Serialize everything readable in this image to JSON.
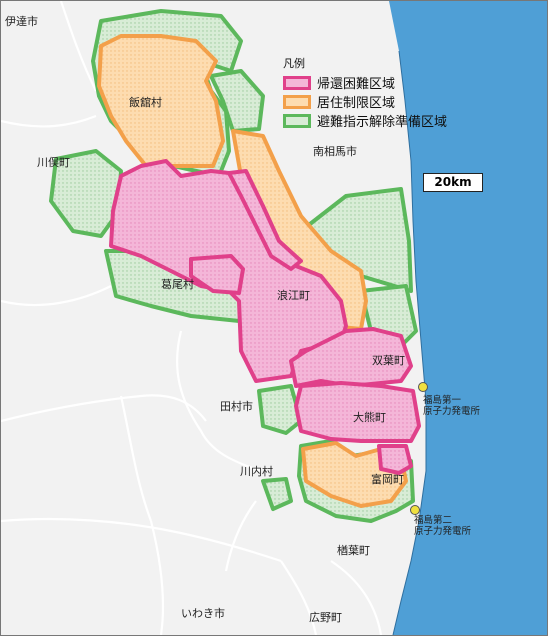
{
  "legend": {
    "title": "凡例",
    "items": [
      {
        "label": "帰還困難区域",
        "fill": "#f4b6d8",
        "stroke": "#e0408a"
      },
      {
        "label": "居住制限区域",
        "fill": "#fddcb0",
        "stroke": "#f3a04a"
      },
      {
        "label": "避難指示解除準備区域",
        "fill": "#d8ecd6",
        "stroke": "#5cb85c"
      }
    ]
  },
  "scale_label": "20km",
  "places": {
    "date": "伊達市",
    "iitate": "飯舘村",
    "kawamata": "川俣町",
    "minamisoma": "南相馬市",
    "katsurao": "葛尾村",
    "namie": "浪江町",
    "futaba": "双葉町",
    "tamura": "田村市",
    "okuma": "大熊町",
    "kawauchi": "川内村",
    "tomioka": "富岡町",
    "naraha": "楢葉町",
    "iwaki": "いわき市",
    "hirono": "広野町",
    "plant1": "福島第一\n原子力発電所",
    "plant2": "福島第二\n原子力発電所"
  },
  "colors": {
    "sea": "#4f9fd6",
    "land": "#f2f2f2",
    "boundary": "#ffffff"
  }
}
